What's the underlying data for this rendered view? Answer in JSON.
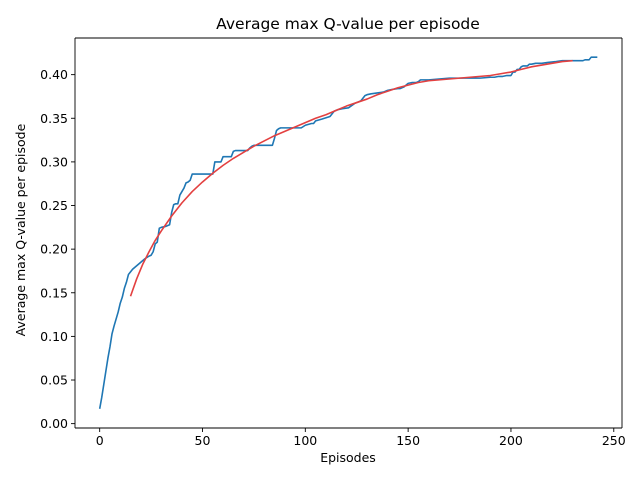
{
  "chart_data": {
    "type": "line",
    "title": "Average max Q-value per episode",
    "xlabel": "Episodes",
    "ylabel": "Average max Q-value per episode",
    "xlim": [
      -12,
      254
    ],
    "ylim": [
      -0.005,
      0.442
    ],
    "xticks": [
      0,
      50,
      100,
      150,
      200,
      250
    ],
    "xtick_labels": [
      "0",
      "50",
      "100",
      "150",
      "200",
      "250"
    ],
    "yticks": [
      0.0,
      0.05,
      0.1,
      0.15,
      0.2,
      0.25,
      0.3,
      0.35,
      0.4
    ],
    "ytick_labels": [
      "0.00",
      "0.05",
      "0.10",
      "0.15",
      "0.20",
      "0.25",
      "0.30",
      "0.35",
      "0.40"
    ],
    "grid": false,
    "legend": "none",
    "series": [
      {
        "color": "#1f77b4",
        "x": [
          0,
          1,
          2,
          3,
          4,
          5,
          6,
          7,
          8,
          9,
          10,
          11,
          12,
          13,
          14,
          15,
          16,
          18,
          20,
          22,
          24,
          25,
          26,
          27,
          28,
          29,
          30,
          32,
          33,
          34,
          35,
          36,
          37,
          38,
          39,
          40,
          41,
          42,
          43,
          44,
          45,
          46,
          50,
          54,
          55,
          56,
          58,
          59,
          60,
          62,
          64,
          65,
          66,
          70,
          72,
          73,
          74,
          75,
          80,
          82,
          84,
          85,
          86,
          87,
          88,
          90,
          95,
          98,
          100,
          103,
          104,
          105,
          108,
          112,
          114,
          116,
          118,
          121,
          124,
          127,
          129,
          130,
          132,
          135,
          138,
          140,
          142,
          145,
          146,
          148,
          150,
          152,
          154,
          155,
          156,
          157,
          160,
          165,
          170,
          175,
          180,
          185,
          190,
          192,
          194,
          196,
          198,
          200,
          201,
          202,
          203,
          204,
          205,
          206,
          208,
          209,
          210,
          212,
          215,
          218,
          222,
          225,
          228,
          232,
          235,
          236,
          238,
          239,
          240,
          242
        ],
        "y": [
          0.017,
          0.03,
          0.045,
          0.06,
          0.075,
          0.088,
          0.103,
          0.112,
          0.12,
          0.128,
          0.138,
          0.145,
          0.155,
          0.162,
          0.171,
          0.174,
          0.177,
          0.181,
          0.185,
          0.189,
          0.192,
          0.193,
          0.197,
          0.206,
          0.208,
          0.224,
          0.225,
          0.226,
          0.227,
          0.228,
          0.242,
          0.251,
          0.252,
          0.252,
          0.262,
          0.266,
          0.27,
          0.276,
          0.277,
          0.279,
          0.286,
          0.286,
          0.286,
          0.286,
          0.286,
          0.3,
          0.3,
          0.3,
          0.306,
          0.306,
          0.306,
          0.312,
          0.313,
          0.313,
          0.313,
          0.316,
          0.318,
          0.319,
          0.319,
          0.319,
          0.319,
          0.327,
          0.336,
          0.338,
          0.339,
          0.339,
          0.339,
          0.339,
          0.342,
          0.344,
          0.344,
          0.347,
          0.349,
          0.352,
          0.358,
          0.36,
          0.361,
          0.362,
          0.367,
          0.37,
          0.376,
          0.377,
          0.378,
          0.379,
          0.38,
          0.382,
          0.383,
          0.384,
          0.384,
          0.386,
          0.39,
          0.391,
          0.391,
          0.392,
          0.394,
          0.394,
          0.394,
          0.395,
          0.396,
          0.396,
          0.396,
          0.396,
          0.397,
          0.397,
          0.398,
          0.398,
          0.399,
          0.399,
          0.403,
          0.403,
          0.406,
          0.406,
          0.409,
          0.41,
          0.41,
          0.412,
          0.412,
          0.413,
          0.413,
          0.414,
          0.415,
          0.416,
          0.416,
          0.416,
          0.416,
          0.417,
          0.417,
          0.42,
          0.42,
          0.42
        ]
      },
      {
        "color": "#e34040",
        "x": [
          15,
          18,
          21,
          24,
          27,
          30,
          35,
          40,
          45,
          50,
          55,
          60,
          65,
          70,
          75,
          80,
          85,
          90,
          95,
          100,
          105,
          110,
          115,
          120,
          125,
          130,
          135,
          140,
          145,
          150,
          155,
          160,
          165,
          170,
          175,
          180,
          185,
          190,
          195,
          200,
          205,
          210,
          215,
          220,
          225,
          230
        ],
        "y": [
          0.146,
          0.166,
          0.183,
          0.197,
          0.21,
          0.221,
          0.238,
          0.253,
          0.266,
          0.277,
          0.287,
          0.296,
          0.304,
          0.311,
          0.318,
          0.324,
          0.33,
          0.335,
          0.34,
          0.345,
          0.35,
          0.354,
          0.359,
          0.364,
          0.368,
          0.372,
          0.377,
          0.381,
          0.385,
          0.388,
          0.391,
          0.393,
          0.394,
          0.395,
          0.396,
          0.397,
          0.398,
          0.399,
          0.401,
          0.403,
          0.406,
          0.409,
          0.411,
          0.413,
          0.415,
          0.416
        ]
      }
    ]
  }
}
